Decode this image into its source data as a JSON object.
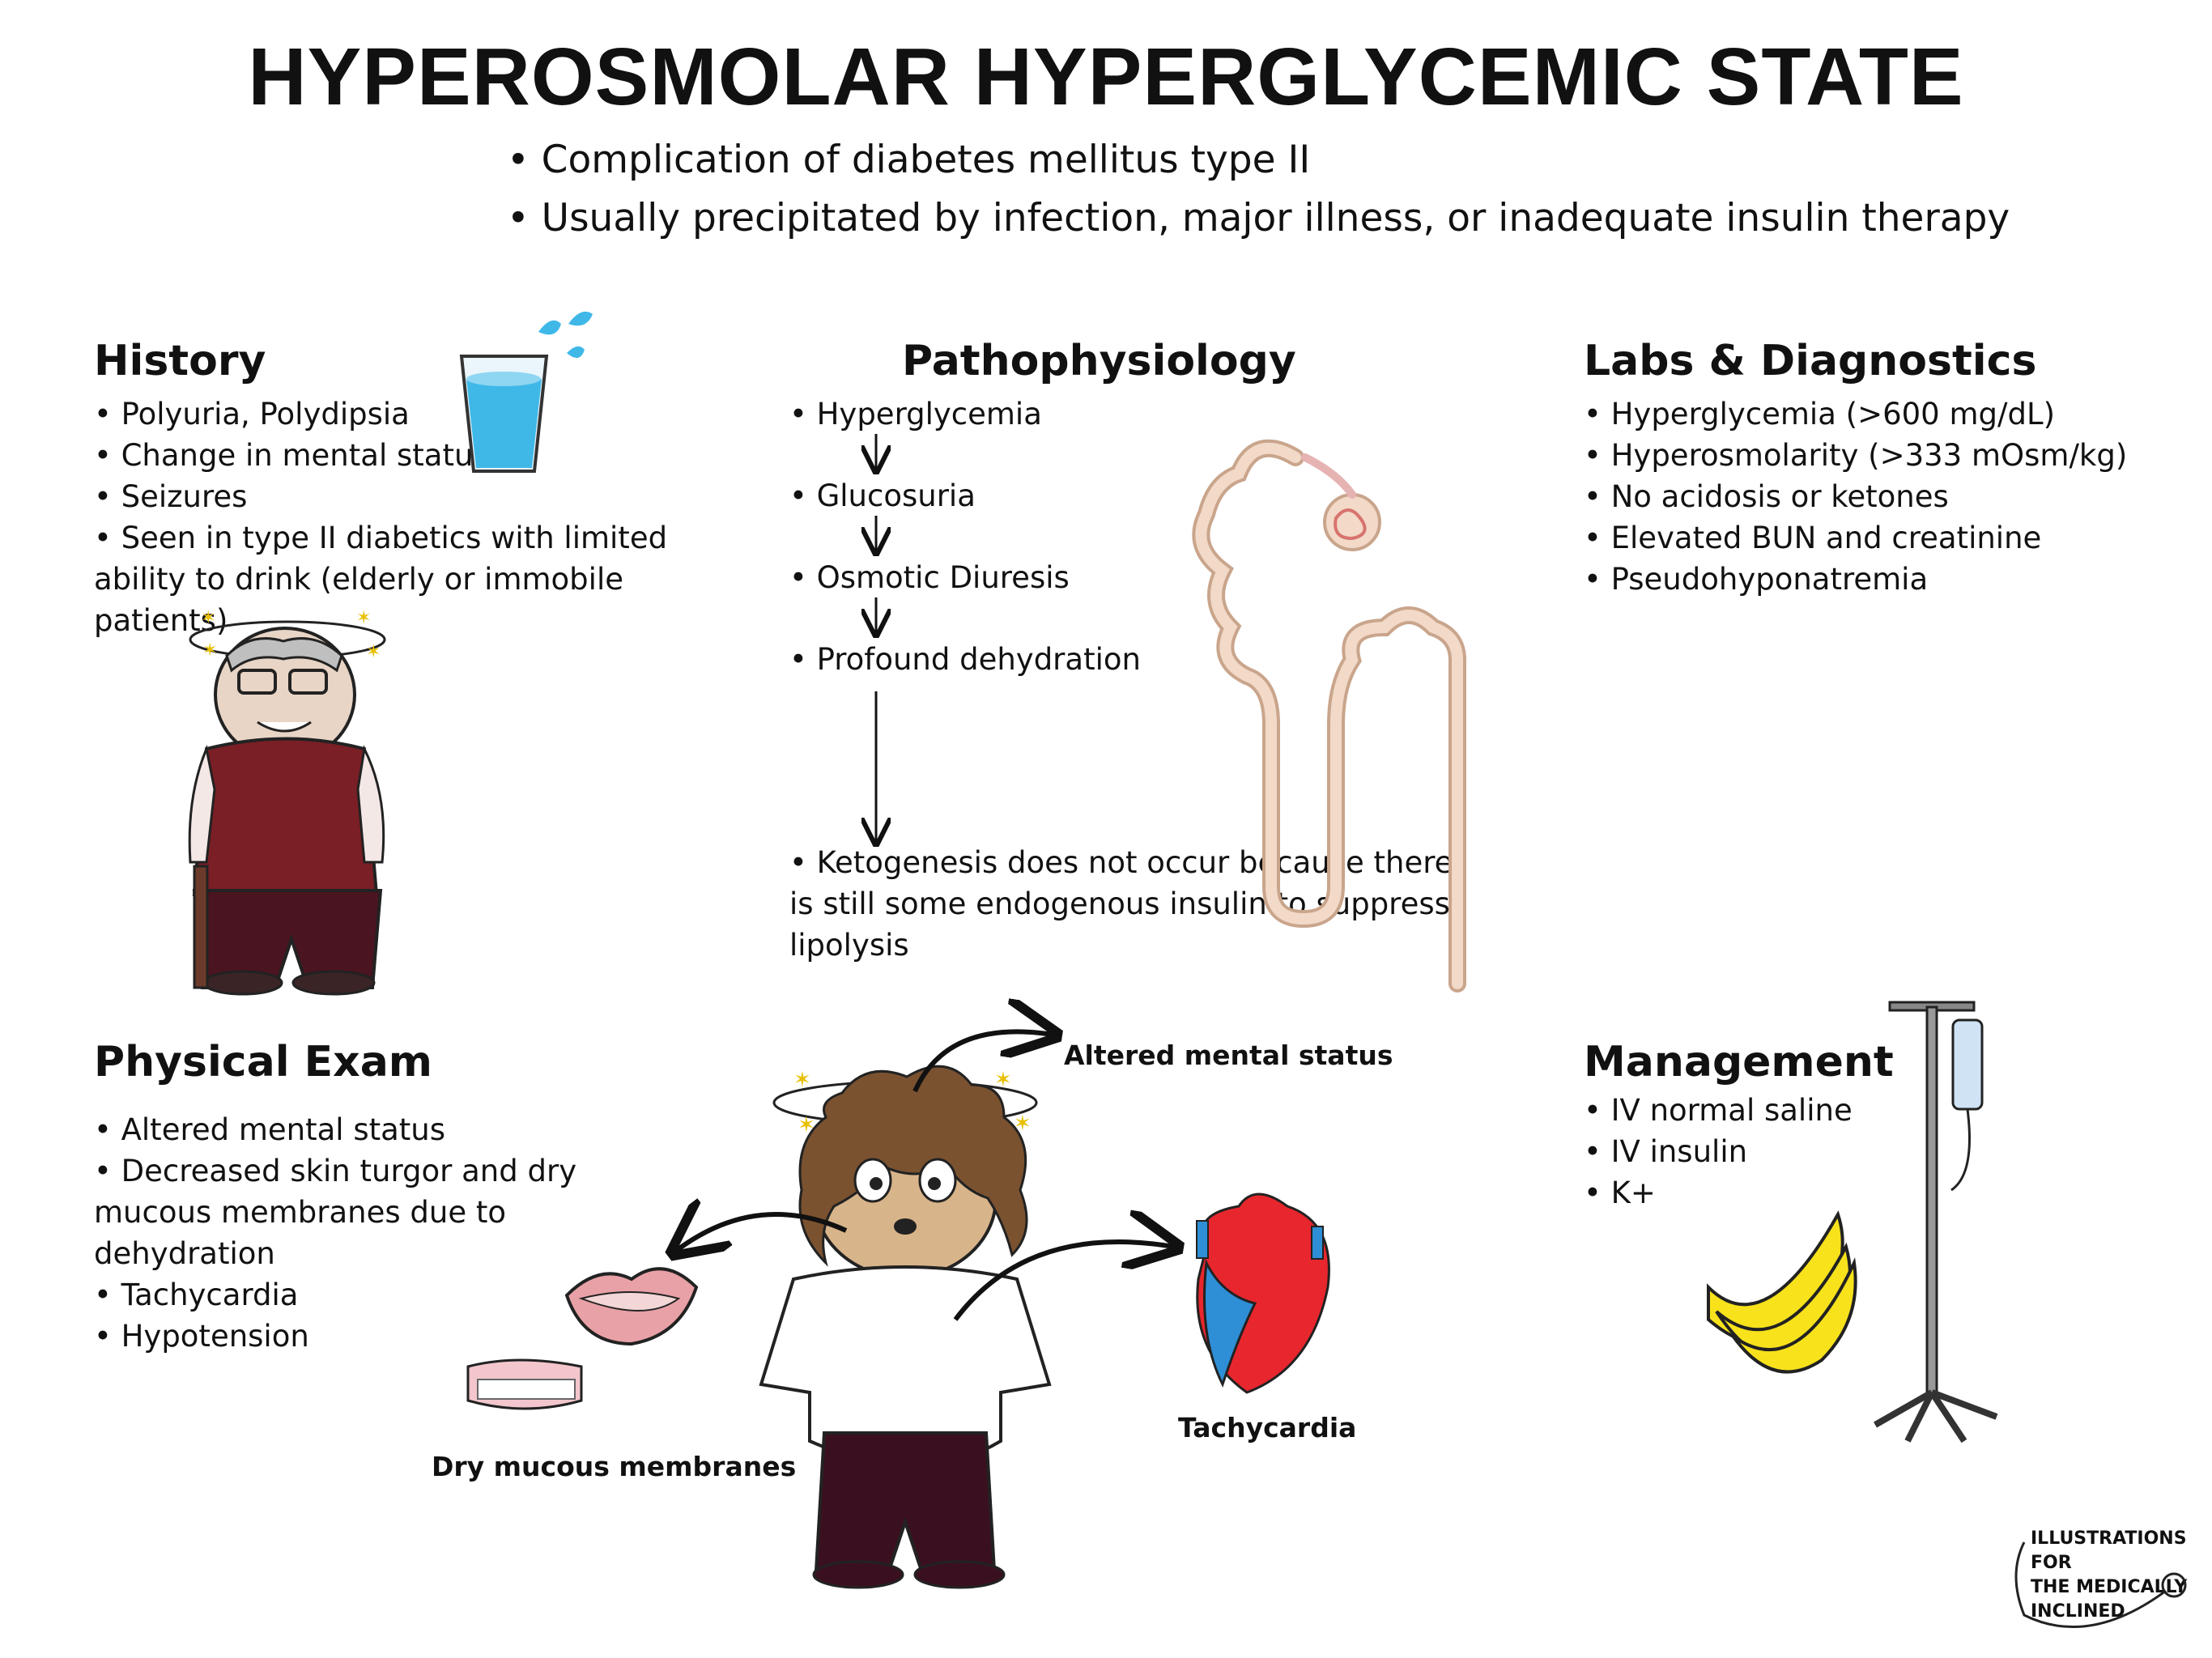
{
  "title": "HYPEROSMOLAR HYPERGLYCEMIC STATE",
  "intro": [
    "Complication of diabetes mellitus type II",
    "Usually precipitated by infection, major illness, or inadequate insulin therapy"
  ],
  "history": {
    "heading": "History",
    "items": [
      "Polyuria, Polydipsia",
      "Change in mental status",
      "Seizures",
      "Seen in type II diabetics with limited ability to drink (elderly or immobile patients)"
    ]
  },
  "pathophysiology": {
    "heading": "Pathophysiology",
    "steps": [
      "Hyperglycemia",
      "Glucosuria",
      "Osmotic Diuresis",
      "Profound dehydration",
      "Ketogenesis does not occur because there is still some endogenous insulin to suppress lipolysis"
    ]
  },
  "labs": {
    "heading": "Labs & Diagnostics",
    "items": [
      "Hyperglycemia (>600 mg/dL)",
      "Hyperosmolarity (>333 mOsm/kg)",
      "No acidosis or ketones",
      "Elevated BUN and creatinine",
      "Pseudohyponatremia"
    ]
  },
  "physical_exam": {
    "heading": "Physical Exam",
    "items": [
      "Altered mental status",
      "Decreased skin turgor and dry mucous membranes due to dehydration",
      "Tachycardia",
      "Hypotension"
    ]
  },
  "management": {
    "heading": "Management",
    "items": [
      "IV normal saline",
      "IV insulin",
      "K+"
    ]
  },
  "figure_labels": {
    "altered": "Altered mental status",
    "dry": "Dry mucous membranes",
    "tachy": "Tachycardia"
  },
  "logo_text": [
    "ILLUSTRATIONS FOR",
    "THE MEDICALLY",
    "INCLINED"
  ],
  "colors": {
    "water": "#3fb8e8",
    "sweater": "#7a1f25",
    "pants": "#4a1420",
    "skin": "#d8b48a",
    "hair": "#7a5230",
    "heart_red": "#e8262d",
    "heart_blue": "#2e8fd6",
    "banana": "#f7e21c",
    "nephron": "#f2d9c8"
  }
}
